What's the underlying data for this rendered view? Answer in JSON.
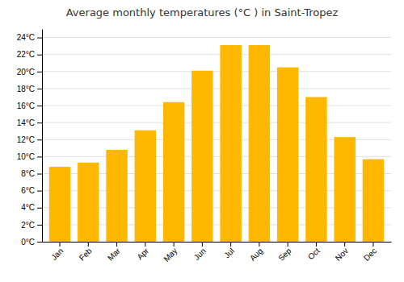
{
  "chart_data": {
    "type": "bar",
    "title": "Average monthly temperatures (°C ) in Saint-Tropez",
    "categories": [
      "Jan",
      "Feb",
      "Mar",
      "Apr",
      "May",
      "Jun",
      "Jul",
      "Aug",
      "Sep",
      "Oct",
      "Nov",
      "Dec"
    ],
    "values": [
      8.8,
      9.3,
      10.8,
      13.1,
      16.4,
      20.1,
      23.1,
      23.1,
      20.5,
      17.0,
      12.3,
      9.7
    ],
    "color": "#FFB800",
    "ylim": [
      0,
      25
    ],
    "yticks": [
      {
        "value": 0,
        "label": "0°C"
      },
      {
        "value": 2,
        "label": "2°C"
      },
      {
        "value": 4,
        "label": "4°C"
      },
      {
        "value": 6,
        "label": "6°C"
      },
      {
        "value": 8,
        "label": "8°C"
      },
      {
        "value": 10,
        "label": "10°C"
      },
      {
        "value": 12,
        "label": "12°C"
      },
      {
        "value": 14,
        "label": "14°C"
      },
      {
        "value": 16,
        "label": "16°C"
      },
      {
        "value": 18,
        "label": "18°C"
      },
      {
        "value": 20,
        "label": "20°C"
      },
      {
        "value": 22,
        "label": "22°C"
      },
      {
        "value": 24,
        "label": "24°C"
      }
    ],
    "grid": true
  }
}
